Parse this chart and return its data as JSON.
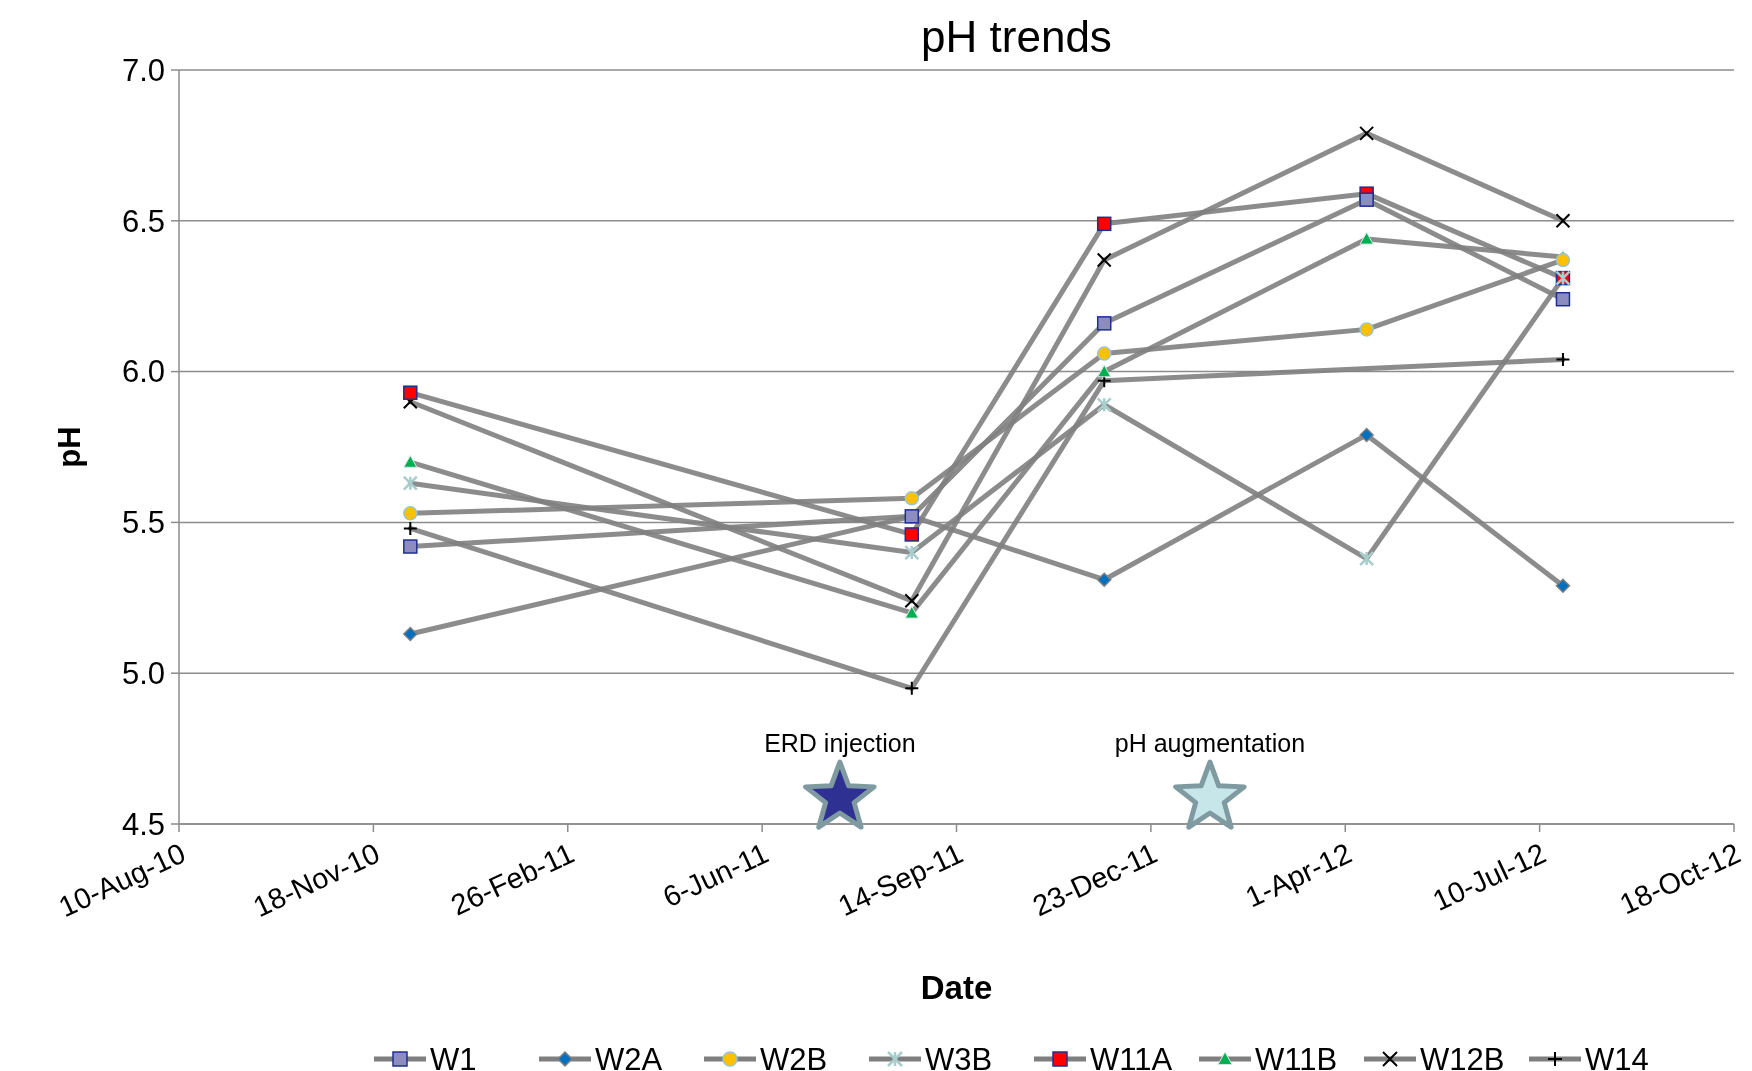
{
  "chart_data": {
    "type": "line",
    "title": "pH trends",
    "xlabel": "Date",
    "ylabel": "pH",
    "x": [
      "2010-12-07",
      "2011-08-22",
      "2011-11-29",
      "2012-04-12",
      "2012-07-22"
    ],
    "xlim": [
      "2010-08-10",
      "2012-10-18"
    ],
    "xticks": [
      {
        "value": "2010-08-10",
        "label": "10-Aug-10"
      },
      {
        "value": "2010-11-18",
        "label": "18-Nov-10"
      },
      {
        "value": "2011-02-26",
        "label": "26-Feb-11"
      },
      {
        "value": "2011-06-06",
        "label": "6-Jun-11"
      },
      {
        "value": "2011-09-14",
        "label": "14-Sep-11"
      },
      {
        "value": "2011-12-23",
        "label": "23-Dec-11"
      },
      {
        "value": "2012-04-01",
        "label": "1-Apr-12"
      },
      {
        "value": "2012-07-10",
        "label": "10-Jul-12"
      },
      {
        "value": "2012-10-18",
        "label": "18-Oct-12"
      }
    ],
    "ylim": [
      4.5,
      7.0
    ],
    "yticks": [
      {
        "value": 4.5,
        "label": "4.5"
      },
      {
        "value": 5.0,
        "label": "5.0"
      },
      {
        "value": 5.5,
        "label": "5.5"
      },
      {
        "value": 6.0,
        "label": "6.0"
      },
      {
        "value": 6.5,
        "label": "6.5"
      },
      {
        "value": 7.0,
        "label": "7.0"
      }
    ],
    "grid": "y",
    "legend": "bottom",
    "series": [
      {
        "name": "W1",
        "color": "#8c8cc0",
        "marker": "square",
        "values": [
          5.42,
          5.52,
          6.16,
          6.57,
          6.24
        ]
      },
      {
        "name": "W2A",
        "color": "#0070c0",
        "marker": "diamond",
        "values": [
          5.13,
          5.52,
          5.31,
          5.79,
          5.29
        ]
      },
      {
        "name": "W2B",
        "color": "#ffc000",
        "marker": "circle",
        "values": [
          5.53,
          5.58,
          6.06,
          6.14,
          6.37
        ]
      },
      {
        "name": "W3B",
        "color": "#a9cccc",
        "marker": "cross",
        "values": [
          5.63,
          5.4,
          5.89,
          5.38,
          6.31
        ]
      },
      {
        "name": "W11A",
        "color": "#ff0000",
        "marker": "square",
        "values": [
          5.93,
          5.46,
          6.49,
          6.59,
          6.31
        ]
      },
      {
        "name": "W11B",
        "color": "#00b050",
        "marker": "triangle",
        "values": [
          5.7,
          5.2,
          6.0,
          6.44,
          6.38
        ]
      },
      {
        "name": "W12B",
        "color": "#000000",
        "marker": "x",
        "values": [
          5.9,
          5.24,
          6.37,
          6.79,
          6.5
        ]
      },
      {
        "name": "W14",
        "color": "#000000",
        "marker": "plus",
        "values": [
          5.48,
          4.95,
          5.97,
          null,
          6.04
        ]
      }
    ],
    "annotations": [
      "ERD injection",
      "pH augmentation"
    ]
  }
}
